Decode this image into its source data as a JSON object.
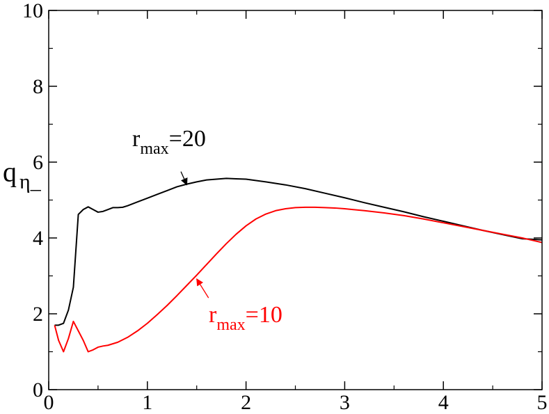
{
  "chart_data": {
    "type": "line",
    "xlabel": "",
    "ylabel": "q",
    "ylabel_subscript": "η_",
    "xlim": [
      0,
      5
    ],
    "ylim": [
      0,
      10
    ],
    "xticks": [
      0,
      1,
      2,
      3,
      4,
      5
    ],
    "yticks": [
      0,
      2,
      4,
      6,
      8,
      10
    ],
    "xtick_labels": [
      "0",
      "1",
      "2",
      "3",
      "4",
      "5"
    ],
    "ytick_labels": [
      "0",
      "2",
      "4",
      "6",
      "8",
      "10"
    ],
    "grid": false,
    "series": [
      {
        "color": "#000000",
        "x": [
          0.06,
          0.1,
          0.15,
          0.2,
          0.25,
          0.3,
          0.35,
          0.4,
          0.45,
          0.5,
          0.55,
          0.6,
          0.65,
          0.7,
          0.75,
          0.8,
          0.9,
          1.0,
          1.1,
          1.2,
          1.3,
          1.4,
          1.5,
          1.6,
          1.7,
          1.8,
          1.9,
          2.0,
          2.2,
          2.4,
          2.6,
          2.8,
          3.0,
          3.2,
          3.4,
          3.6,
          3.8,
          4.0,
          4.2,
          4.4,
          4.6,
          4.8,
          5.0
        ],
        "y": [
          1.7,
          1.7,
          1.75,
          2.1,
          2.7,
          4.62,
          4.75,
          4.82,
          4.75,
          4.68,
          4.7,
          4.75,
          4.8,
          4.8,
          4.81,
          4.85,
          4.95,
          5.05,
          5.15,
          5.25,
          5.35,
          5.42,
          5.48,
          5.53,
          5.55,
          5.57,
          5.56,
          5.55,
          5.48,
          5.4,
          5.3,
          5.18,
          5.06,
          4.93,
          4.81,
          4.69,
          4.56,
          4.44,
          4.32,
          4.2,
          4.09,
          3.98,
          3.95
        ]
      },
      {
        "color": "#ff0000",
        "x": [
          0.06,
          0.1,
          0.15,
          0.2,
          0.25,
          0.3,
          0.35,
          0.4,
          0.45,
          0.5,
          0.55,
          0.6,
          0.7,
          0.8,
          0.9,
          1.0,
          1.1,
          1.2,
          1.3,
          1.4,
          1.5,
          1.6,
          1.7,
          1.8,
          1.9,
          2.0,
          2.1,
          2.2,
          2.3,
          2.4,
          2.5,
          2.6,
          2.7,
          2.8,
          2.9,
          3.0,
          3.2,
          3.4,
          3.6,
          3.8,
          4.0,
          4.2,
          4.4,
          4.6,
          4.8,
          5.0
        ],
        "y": [
          1.7,
          1.3,
          1.0,
          1.35,
          1.8,
          1.55,
          1.3,
          1.0,
          1.05,
          1.12,
          1.15,
          1.17,
          1.25,
          1.38,
          1.55,
          1.75,
          1.98,
          2.22,
          2.48,
          2.75,
          3.02,
          3.3,
          3.58,
          3.85,
          4.1,
          4.32,
          4.5,
          4.63,
          4.72,
          4.77,
          4.8,
          4.81,
          4.81,
          4.8,
          4.79,
          4.77,
          4.72,
          4.66,
          4.59,
          4.5,
          4.4,
          4.3,
          4.2,
          4.1,
          4.0,
          3.88
        ]
      }
    ],
    "annotations": [
      {
        "text_main": "r",
        "text_sub": "max",
        "text_tail": "=20",
        "color": "#000000",
        "arrow_from": [
          1.34,
          5.75
        ],
        "arrow_to": [
          1.4,
          5.4
        ]
      },
      {
        "text_main": "r",
        "text_sub": "max",
        "text_tail": "=10",
        "color": "#ff0000",
        "arrow_from": [
          1.62,
          2.42
        ],
        "arrow_to": [
          1.5,
          2.92
        ]
      }
    ]
  }
}
